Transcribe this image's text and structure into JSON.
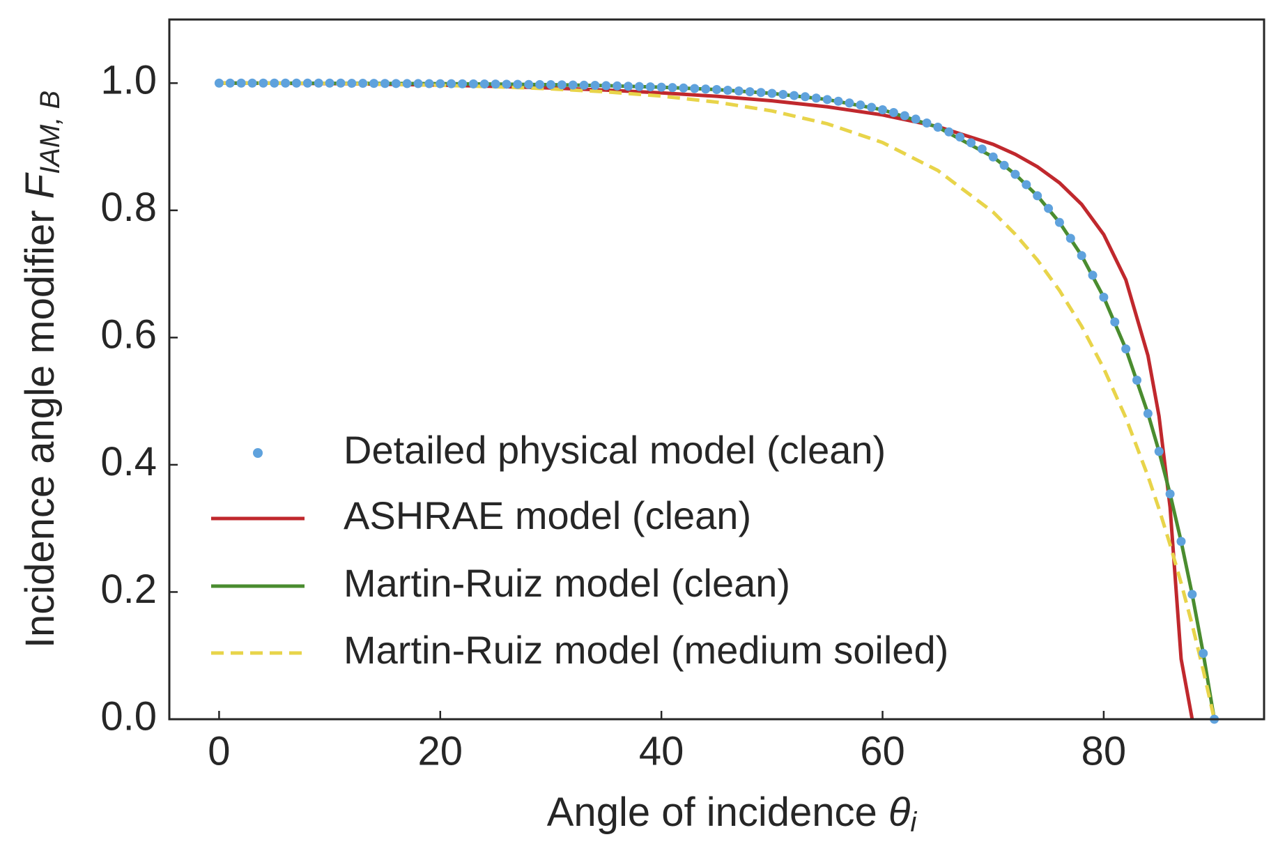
{
  "chart_data": {
    "type": "line",
    "x_label": {
      "text": "Angle of incidence ",
      "symbol": "θ",
      "subscript": "i"
    },
    "y_label": {
      "text": "Incidence angle modifier ",
      "symbol": "F",
      "subscript": "IAM, B"
    },
    "xlim": [
      -4.5,
      94.5
    ],
    "ylim": [
      0,
      1.1
    ],
    "xticks": [
      0,
      20,
      40,
      60,
      80
    ],
    "yticks": [
      {
        "value": 0,
        "label": "0.0"
      },
      {
        "value": 0.2,
        "label": "0.2"
      },
      {
        "value": 0.4,
        "label": "0.4"
      },
      {
        "value": 0.6,
        "label": "0.6"
      },
      {
        "value": 0.8,
        "label": "0.8"
      },
      {
        "value": 1,
        "label": "1.0"
      }
    ],
    "legend": "lower left",
    "points": {
      "name": "Detailed physical model (clean)",
      "color": "#5fa2dd",
      "x": [
        0,
        1,
        2,
        3,
        4,
        5,
        6,
        7,
        8,
        9,
        10,
        11,
        12,
        13,
        14,
        15,
        16,
        17,
        18,
        19,
        20,
        21,
        22,
        23,
        24,
        25,
        26,
        27,
        28,
        29,
        30,
        31,
        32,
        33,
        34,
        35,
        36,
        37,
        38,
        39,
        40,
        41,
        42,
        43,
        44,
        45,
        46,
        47,
        48,
        49,
        50,
        51,
        52,
        53,
        54,
        55,
        56,
        57,
        58,
        59,
        60,
        61,
        62,
        63,
        64,
        65,
        66,
        67,
        68,
        69,
        70,
        71,
        72,
        73,
        74,
        75,
        76,
        77,
        78,
        79,
        80,
        81,
        82,
        83,
        84,
        85,
        86,
        87,
        88,
        89,
        90
      ],
      "values": [
        1,
        1,
        1,
        1,
        1,
        1,
        1,
        1,
        1,
        1,
        1,
        1,
        0.9997,
        0.9997,
        0.9996,
        0.9995,
        0.9994,
        0.9993,
        0.9993,
        0.9992,
        0.9991,
        0.999,
        0.9989,
        0.9988,
        0.9986,
        0.9985,
        0.9983,
        0.9981,
        0.9979,
        0.9977,
        0.9975,
        0.9973,
        0.997,
        0.9967,
        0.9964,
        0.996,
        0.9956,
        0.9951,
        0.9947,
        0.9942,
        0.9936,
        0.993,
        0.9923,
        0.9915,
        0.9907,
        0.9899,
        0.9888,
        0.9877,
        0.9865,
        0.9852,
        0.9839,
        0.9822,
        0.9805,
        0.9786,
        0.9765,
        0.9742,
        0.9716,
        0.9688,
        0.9656,
        0.962,
        0.9581,
        0.9537,
        0.9488,
        0.9434,
        0.9373,
        0.9307,
        0.9233,
        0.9152,
        0.9062,
        0.8964,
        0.8839,
        0.8708,
        0.8566,
        0.8404,
        0.8229,
        0.803,
        0.781,
        0.756,
        0.7289,
        0.698,
        0.6634,
        0.6245,
        0.5822,
        0.533,
        0.4805,
        0.421,
        0.3542,
        0.2795,
        0.1963,
        0.1035,
        0
      ]
    },
    "x": [
      0,
      5,
      10,
      15,
      20,
      25,
      30,
      35,
      40,
      45,
      50,
      55,
      60,
      65,
      70,
      72,
      74,
      76,
      78,
      80,
      82,
      84,
      85,
      86,
      87,
      88,
      89,
      90
    ],
    "series": [
      {
        "name": "ASHRAE model (clean)",
        "color": "#c0282d",
        "dash": false,
        "values": [
          1,
          0.9998,
          0.9992,
          0.9982,
          0.9968,
          0.9948,
          0.9923,
          0.989,
          0.9847,
          0.9793,
          0.9722,
          0.9628,
          0.95,
          0.9317,
          0.9038,
          0.8882,
          0.8686,
          0.8433,
          0.8095,
          0.762,
          0.6908,
          0.5717,
          0.4766,
          0.3333,
          0.0947,
          0,
          null,
          null
        ]
      },
      {
        "name": "Martin-Ruiz model (clean)",
        "color": "#4a8c2f",
        "dash": false,
        "values": [
          1,
          1,
          0.9998,
          0.9995,
          0.9991,
          0.9985,
          0.9975,
          0.996,
          0.9936,
          0.9899,
          0.9839,
          0.9742,
          0.9581,
          0.9307,
          0.8839,
          0.8566,
          0.8229,
          0.781,
          0.7289,
          0.6634,
          0.5822,
          0.4805,
          0.421,
          0.3542,
          0.2795,
          0.1963,
          0.1035,
          0
        ]
      },
      {
        "name": "Martin-Ruiz model (medium soiled)",
        "color": "#e8d44a",
        "dash": true,
        "values": [
          1,
          0.9998,
          0.9996,
          0.9982,
          0.9966,
          0.9943,
          0.991,
          0.9863,
          0.9796,
          0.9701,
          0.9563,
          0.9361,
          0.9066,
          0.8626,
          0.7972,
          0.7625,
          0.722,
          0.674,
          0.6178,
          0.5515,
          0.4739,
          0.3821,
          0.3306,
          0.2745,
          0.214,
          0.1486,
          0.0772,
          0
        ]
      }
    ]
  }
}
